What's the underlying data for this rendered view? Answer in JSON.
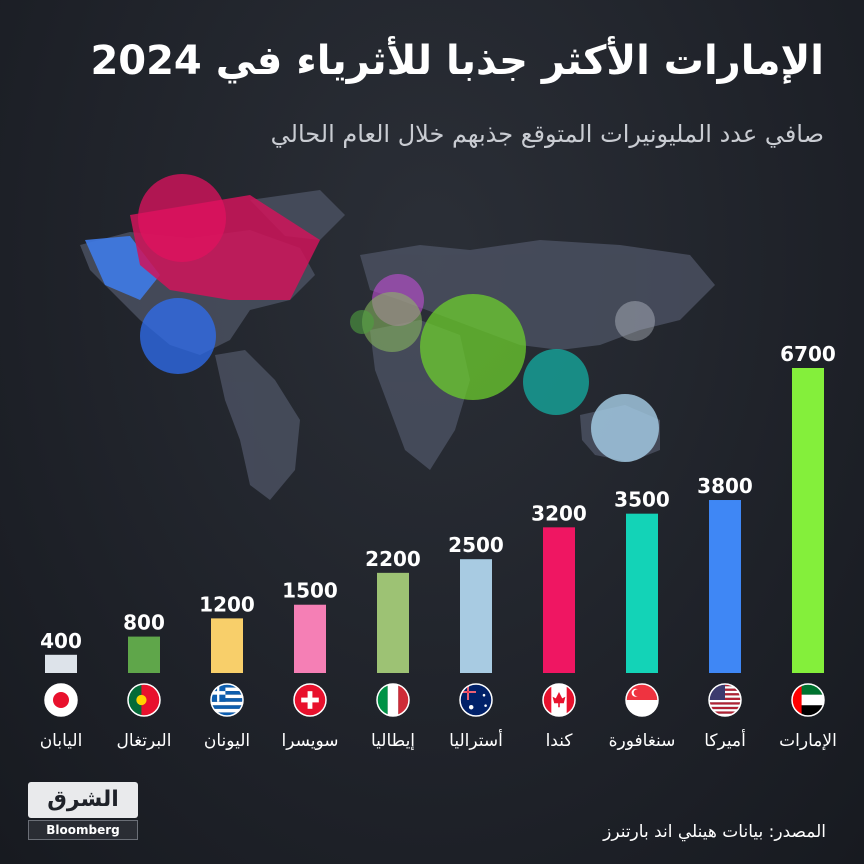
{
  "header": {
    "title": "الإمارات الأكثر جذبا للأثرياء في 2024",
    "subtitle": "صافي عدد المليونيرات المتوقع جذبهم خلال العام الحالي"
  },
  "footer": {
    "source": "المصدر: بيانات هينلي اند بارتنرز",
    "logo_text": "الشرق",
    "logo_sub": "Bloomberg"
  },
  "chart_data": {
    "type": "bar",
    "categories": [
      "اليابان",
      "البرتغال",
      "اليونان",
      "سويسرا",
      "إيطاليا",
      "أستراليا",
      "كندا",
      "سنغافورة",
      "أميركا",
      "الإمارات"
    ],
    "values": [
      400,
      800,
      1200,
      1500,
      2200,
      2500,
      3200,
      3500,
      3800,
      6700
    ],
    "value_labels": [
      "400",
      "800",
      "1200",
      "1500",
      "2200",
      "2500",
      "3200",
      "3500",
      "3800",
      "6700"
    ],
    "colors": [
      "#dde3ea",
      "#5fa64a",
      "#f8cf6a",
      "#f57fb5",
      "#9dc274",
      "#a8cbe2",
      "#ef1662",
      "#13d3b7",
      "#3f87f5",
      "#84ef3b"
    ],
    "flags": [
      "japan-flag",
      "portugal-flag",
      "greece-flag",
      "switzerland-flag",
      "italy-flag",
      "australia-flag",
      "canada-flag",
      "singapore-flag",
      "usa-flag",
      "uae-flag"
    ],
    "ylim": [
      0,
      6700
    ],
    "grid": false,
    "legend": "none"
  }
}
